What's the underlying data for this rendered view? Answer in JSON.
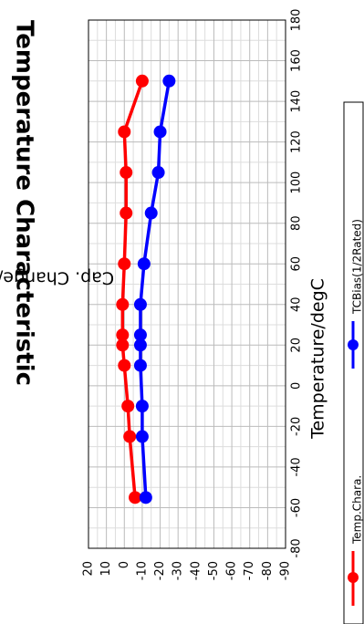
{
  "chart_data": {
    "type": "line",
    "title": "Temperature Characteristic",
    "xlabel": "Temperature/degC",
    "ylabel": "Cap. Change/%",
    "xlim": [
      -80,
      180
    ],
    "ylim": [
      -90,
      20
    ],
    "x_major_ticks": [
      -80,
      -60,
      -40,
      -20,
      0,
      20,
      40,
      60,
      80,
      100,
      120,
      140,
      160,
      180
    ],
    "y_major_ticks": [
      20,
      10,
      0,
      -10,
      -20,
      -30,
      -40,
      -50,
      -60,
      -70,
      -80,
      -90
    ],
    "grid": true,
    "legend_position": "bottom",
    "series": [
      {
        "name": "Temp.Chara.",
        "color": "#ff0000",
        "x": [
          -55,
          -25,
          -10,
          10,
          20,
          25,
          40,
          60,
          85,
          105,
          125,
          150
        ],
        "y": [
          -6,
          -3,
          -2,
          0,
          1,
          1,
          1,
          0,
          -1,
          -1,
          0,
          -10
        ]
      },
      {
        "name": "TCBias(1/2Rated)",
        "color": "#0000ff",
        "x": [
          -55,
          -25,
          -10,
          10,
          20,
          25,
          40,
          60,
          85,
          105,
          125,
          150
        ],
        "y": [
          -12,
          -10,
          -10,
          -9,
          -9,
          -9,
          -9,
          -11,
          -15,
          -19,
          -20,
          -25
        ]
      }
    ]
  }
}
